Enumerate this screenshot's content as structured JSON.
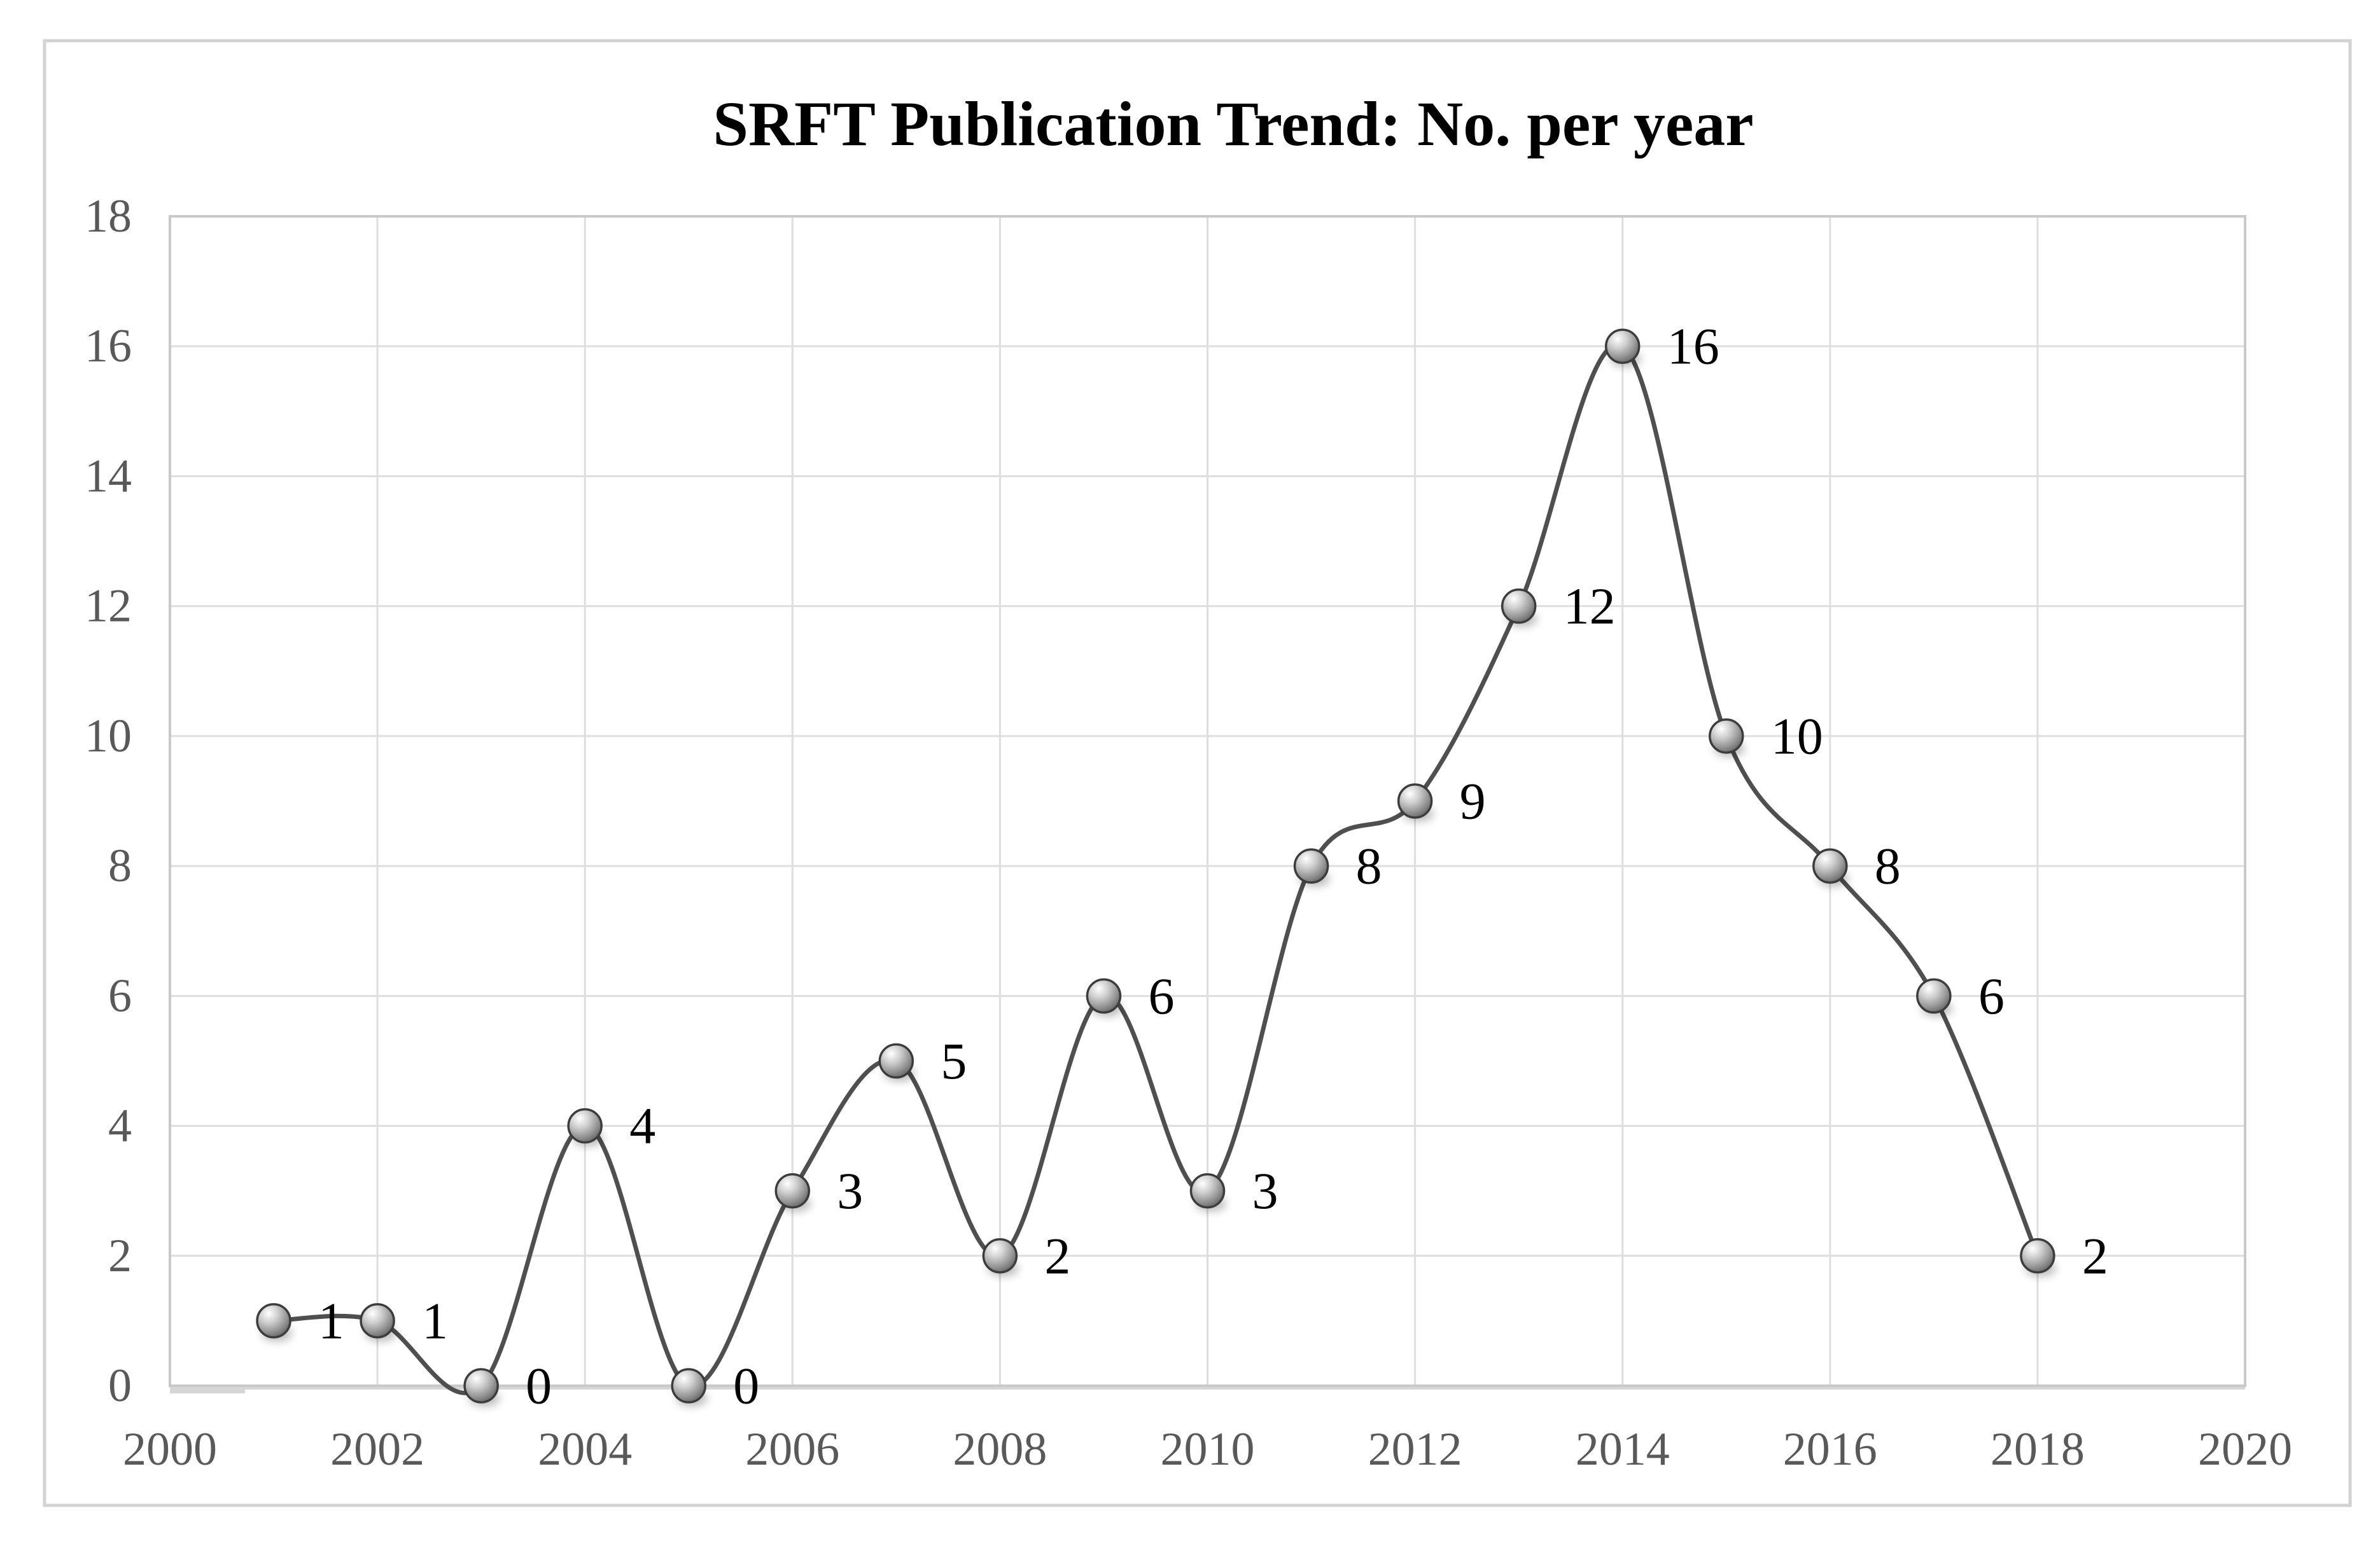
{
  "chart_data": {
    "type": "line",
    "title": "SRFT Publication Trend: No. per year",
    "x": [
      2001,
      2002,
      2003,
      2004,
      2005,
      2006,
      2007,
      2008,
      2009,
      2010,
      2011,
      2012,
      2013,
      2014,
      2015,
      2016,
      2017,
      2018
    ],
    "values": [
      1,
      1,
      0,
      4,
      0,
      3,
      5,
      2,
      6,
      3,
      8,
      9,
      12,
      16,
      10,
      8,
      6,
      2
    ],
    "data_labels": [
      "1",
      "1",
      "0",
      "4",
      "0",
      "3",
      "5",
      "2",
      "6",
      "3",
      "8",
      "9",
      "12",
      "16",
      "10",
      "8",
      "6",
      "2"
    ],
    "xlabel": "",
    "ylabel": "",
    "xlim": [
      2000,
      2020
    ],
    "ylim": [
      0,
      18
    ],
    "x_ticks": [
      2000,
      2002,
      2004,
      2006,
      2008,
      2010,
      2012,
      2014,
      2016,
      2018,
      2020
    ],
    "y_ticks": [
      0,
      2,
      4,
      6,
      8,
      10,
      12,
      14,
      16,
      18
    ],
    "grid": true,
    "legend": false,
    "smooth_line": true,
    "show_data_labels": true,
    "marker_style": "3d-sphere",
    "colors": {
      "line": "#4f4f4f",
      "marker_outline": "#3c3c3c",
      "marker_fill_light": "#ffffff",
      "marker_fill_mid": "#a8a8a8",
      "marker_fill_dark": "#5e5e5e",
      "gridline": "#dedede",
      "axis_line": "#d6d6d6",
      "plot_border": "#c9c9c9",
      "figure_border": "#d2d2d2",
      "axis_text": "#595959",
      "data_label_text": "#000000",
      "title_text": "#000000"
    }
  }
}
